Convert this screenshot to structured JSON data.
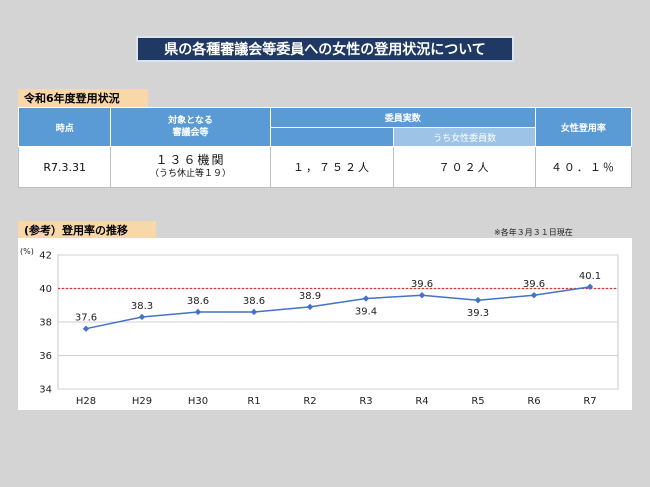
{
  "page": {
    "title": "県の各種審議会等委員への女性の登用状況について",
    "section1_label": "令和6年度登用状況",
    "section2_label": "(参考）登用率の推移",
    "note": "※各年３月３１日現在"
  },
  "table": {
    "headers": {
      "time": "時点",
      "target_line1": "対象となる",
      "target_line2": "審議会等",
      "members": "委員実数",
      "female_members": "うち女性委員数",
      "rate": "女性登用率"
    },
    "row": {
      "time": "R7.3.31",
      "target_main": "１３６機関",
      "target_sub": "（うち休止等１９）",
      "members": "１，７５２人",
      "female_members": "７０２人",
      "rate": "４０．１％"
    }
  },
  "chart_data": {
    "type": "line",
    "categories": [
      "H28",
      "H29",
      "H30",
      "R1",
      "R2",
      "R3",
      "R4",
      "R5",
      "R6",
      "R7"
    ],
    "series": [
      {
        "values": [
          37.6,
          38.3,
          38.6,
          38.6,
          38.9,
          39.4,
          39.6,
          39.3,
          39.6,
          40.1
        ]
      }
    ],
    "label_position": [
      "above",
      "above",
      "above",
      "above",
      "above",
      "below",
      "above",
      "below",
      "above",
      "above"
    ],
    "ylabel": "(%)",
    "ylim": [
      34,
      42
    ],
    "yticks": [
      34,
      36,
      38,
      40,
      42
    ],
    "reference_line": 40,
    "colors": {
      "line": "#4472c4",
      "marker": "#4472c4",
      "reference": "#e03030",
      "grid": "#d0d0d0"
    }
  }
}
